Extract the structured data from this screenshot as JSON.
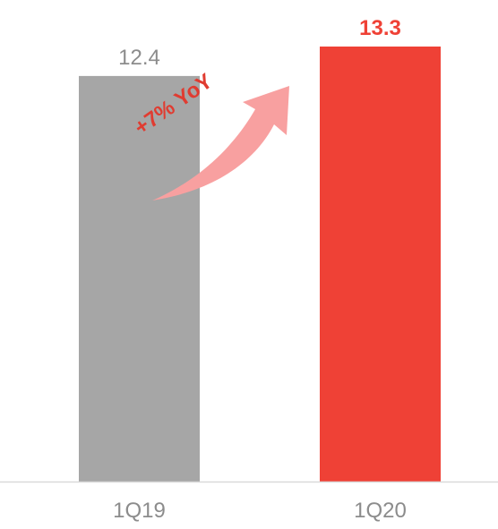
{
  "chart_data": {
    "type": "bar",
    "title": "",
    "xlabel": "",
    "ylabel": "",
    "categories": [
      "1Q19",
      "1Q20"
    ],
    "values": [
      12.4,
      13.3
    ],
    "value_labels": [
      "12.4",
      "13.3"
    ],
    "bar_colors": [
      "#a6a6a6",
      "#ef4136"
    ],
    "value_label_colors": [
      "#8c8c8c",
      "#ef4136"
    ],
    "value_label_bold": [
      false,
      true
    ],
    "grid": false,
    "legend": "none",
    "annotation": {
      "text": "+7% YoY",
      "text_color": "#e03c31",
      "arrow_color": "#f8a0a0",
      "arrow_icon": "curved-up-right-arrow"
    }
  }
}
